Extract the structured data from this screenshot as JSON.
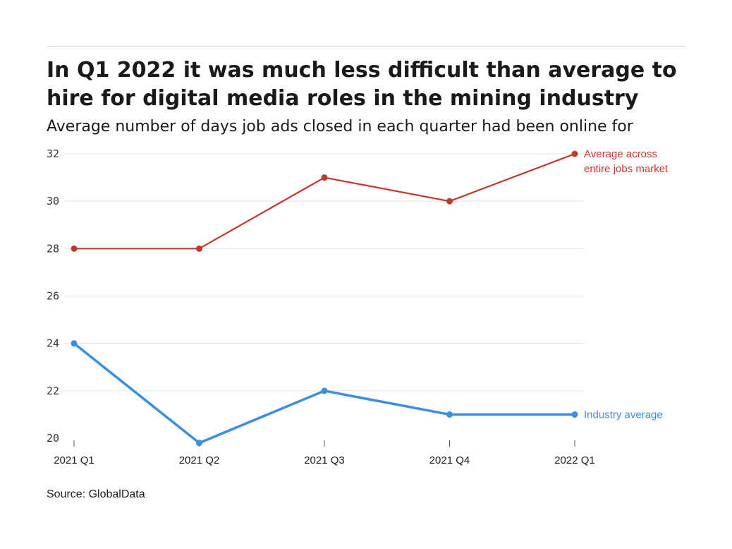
{
  "title": "In Q1 2022 it was much less difficult than average to hire for digital media roles in the mining industry",
  "subtitle": "Average number of days job ads closed in each quarter had been online for",
  "source": "Source: GlobalData",
  "chart_data": {
    "type": "line",
    "categories": [
      "2021 Q1",
      "2021 Q2",
      "2021 Q3",
      "2021 Q4",
      "2022 Q1"
    ],
    "ylim": [
      20,
      32
    ],
    "yticks": [
      20,
      22,
      24,
      26,
      28,
      30,
      32
    ],
    "grid": true,
    "series": [
      {
        "name_lines": [
          "Average across",
          "entire jobs market"
        ],
        "color": "#c0392b",
        "values": [
          28,
          28,
          31,
          30,
          32
        ]
      },
      {
        "name_lines": [
          "Industry average"
        ],
        "color": "#3b8ee0",
        "values": [
          24,
          19.8,
          22,
          21,
          21
        ]
      }
    ]
  }
}
